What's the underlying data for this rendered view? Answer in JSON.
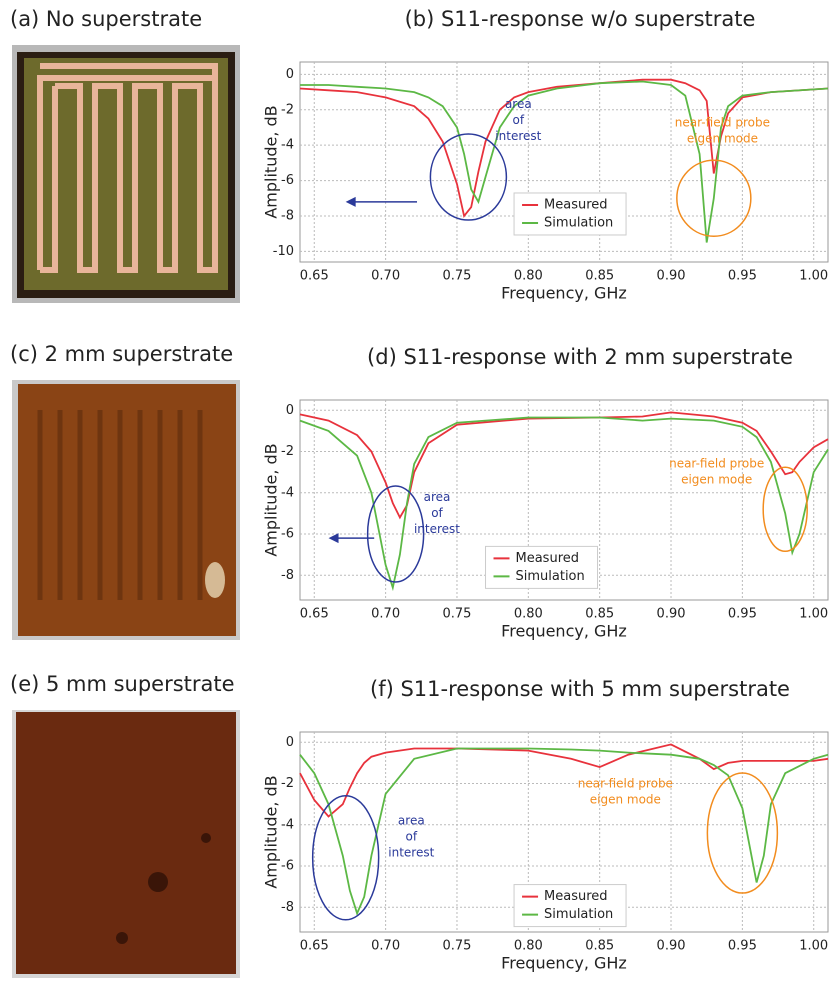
{
  "photos": [
    {
      "caption": "(a) No superstrate"
    },
    {
      "caption": "(c) 2 mm superstrate"
    },
    {
      "caption": "(e) 5 mm superstrate"
    }
  ],
  "chart_data": [
    {
      "type": "line",
      "title": "(b) S11-response w/o superstrate",
      "x_label": "Frequency, GHz",
      "y_label": "Amplitude, dB",
      "x": [
        0.64,
        0.66,
        0.68,
        0.7,
        0.72,
        0.73,
        0.74,
        0.75,
        0.755,
        0.76,
        0.765,
        0.77,
        0.78,
        0.79,
        0.8,
        0.82,
        0.85,
        0.88,
        0.9,
        0.91,
        0.92,
        0.925,
        0.93,
        0.935,
        0.94,
        0.95,
        0.97,
        1.01
      ],
      "series": [
        {
          "name": "Measured",
          "color": "#e8323c",
          "values": [
            -0.8,
            -0.9,
            -1.0,
            -1.3,
            -1.8,
            -2.5,
            -3.8,
            -6.2,
            -8.0,
            -7.5,
            -5.5,
            -3.8,
            -2.0,
            -1.3,
            -1.0,
            -0.7,
            -0.5,
            -0.3,
            -0.3,
            -0.5,
            -0.9,
            -1.5,
            -5.6,
            -3.5,
            -2.2,
            -1.3,
            -1.0,
            -0.8
          ]
        },
        {
          "name": "Simulation",
          "color": "#5cb845",
          "values": [
            -0.6,
            -0.6,
            -0.7,
            -0.8,
            -1.0,
            -1.3,
            -1.8,
            -3.0,
            -4.5,
            -6.5,
            -7.2,
            -5.8,
            -3.0,
            -1.8,
            -1.2,
            -0.8,
            -0.5,
            -0.4,
            -0.6,
            -1.2,
            -4.5,
            -9.5,
            -7.0,
            -3.0,
            -1.8,
            -1.2,
            -1.0,
            -0.8
          ]
        }
      ],
      "xlim": [
        0.64,
        1.01
      ],
      "ylim": [
        -10.6,
        0.7
      ],
      "xticks": [
        0.65,
        {
          "value": 0.7,
          "label": "0.70"
        },
        0.75,
        {
          "value": 0.8,
          "label": "0.80"
        },
        0.85,
        {
          "value": 0.9,
          "label": "0.90"
        },
        0.95,
        {
          "value": 1.0,
          "label": "1.00"
        }
      ],
      "yticks": [
        0,
        -2,
        -4,
        -6,
        -8,
        -10
      ],
      "grid": true,
      "annotations": [
        {
          "lines": [
            "area",
            "of",
            "interest"
          ],
          "color": "#2b3a9a"
        },
        {
          "lines": [
            "near-field probe",
            "eigen mode"
          ],
          "color": "#f28c1e"
        }
      ]
    },
    {
      "type": "line",
      "title": "(d) S11-response with 2 mm superstrate",
      "x_label": "Frequency, GHz",
      "y_label": "Amplitude, dB",
      "x": [
        0.64,
        0.66,
        0.68,
        0.69,
        0.7,
        0.705,
        0.71,
        0.715,
        0.72,
        0.73,
        0.75,
        0.8,
        0.85,
        0.88,
        0.9,
        0.93,
        0.95,
        0.96,
        0.97,
        0.98,
        0.985,
        0.99,
        1.0,
        1.01
      ],
      "series": [
        {
          "name": "Measured",
          "color": "#e8323c",
          "values": [
            -0.2,
            -0.5,
            -1.2,
            -2.0,
            -3.5,
            -4.5,
            -5.2,
            -4.6,
            -3.0,
            -1.6,
            -0.7,
            -0.4,
            -0.35,
            -0.3,
            -0.1,
            -0.3,
            -0.6,
            -1.0,
            -2.0,
            -3.1,
            -3.0,
            -2.5,
            -1.8,
            -1.4
          ]
        },
        {
          "name": "Simulation",
          "color": "#5cb845",
          "values": [
            -0.5,
            -1.0,
            -2.2,
            -4.0,
            -7.5,
            -8.6,
            -7.0,
            -4.5,
            -2.6,
            -1.3,
            -0.6,
            -0.35,
            -0.35,
            -0.5,
            -0.4,
            -0.5,
            -0.8,
            -1.3,
            -2.5,
            -5.0,
            -6.9,
            -6.0,
            -3.0,
            -1.9
          ]
        }
      ],
      "xlim": [
        0.64,
        1.01
      ],
      "ylim": [
        -9.2,
        0.5
      ],
      "xticks": [
        0.65,
        {
          "value": 0.7,
          "label": "0.70"
        },
        0.75,
        {
          "value": 0.8,
          "label": "0.80"
        },
        0.85,
        {
          "value": 0.9,
          "label": "0.90"
        },
        0.95,
        {
          "value": 1.0,
          "label": "1.00"
        }
      ],
      "yticks": [
        0,
        -2,
        -4,
        -6,
        -8
      ],
      "grid": true,
      "annotations": [
        {
          "lines": [
            "area",
            "of",
            "interest"
          ],
          "color": "#2b3a9a"
        },
        {
          "lines": [
            "near-field probe",
            "eigen mode"
          ],
          "color": "#f28c1e"
        }
      ]
    },
    {
      "type": "line",
      "title": "(f) S11-response with 5 mm superstrate",
      "x_label": "Frequency, GHz",
      "y_label": "Amplitude, dB",
      "x": [
        0.64,
        0.65,
        0.66,
        0.67,
        0.675,
        0.68,
        0.685,
        0.69,
        0.7,
        0.72,
        0.75,
        0.8,
        0.83,
        0.85,
        0.87,
        0.9,
        0.92,
        0.93,
        0.94,
        0.95,
        0.955,
        0.96,
        0.965,
        0.97,
        0.98,
        1.0,
        1.01
      ],
      "series": [
        {
          "name": "Measured",
          "color": "#e8323c",
          "values": [
            -1.5,
            -2.8,
            -3.6,
            -3.0,
            -2.2,
            -1.5,
            -1.0,
            -0.7,
            -0.5,
            -0.3,
            -0.3,
            -0.4,
            -0.8,
            -1.2,
            -0.6,
            -0.1,
            -0.8,
            -1.3,
            -1.0,
            -0.9,
            -0.9,
            -0.9,
            -0.9,
            -0.9,
            -0.9,
            -0.9,
            -0.8
          ]
        },
        {
          "name": "Simulation",
          "color": "#5cb845",
          "values": [
            -0.6,
            -1.5,
            -3.0,
            -5.5,
            -7.2,
            -8.3,
            -7.5,
            -5.5,
            -2.5,
            -0.8,
            -0.3,
            -0.3,
            -0.35,
            -0.4,
            -0.5,
            -0.6,
            -0.8,
            -1.1,
            -1.6,
            -3.2,
            -5.0,
            -6.8,
            -5.5,
            -3.0,
            -1.5,
            -0.8,
            -0.6
          ]
        }
      ],
      "xlim": [
        0.64,
        1.01
      ],
      "ylim": [
        -9.2,
        0.5
      ],
      "xticks": [
        0.65,
        {
          "value": 0.7,
          "label": "0.70"
        },
        0.75,
        {
          "value": 0.8,
          "label": "0.80"
        },
        0.85,
        {
          "value": 0.9,
          "label": "0.90"
        },
        0.95,
        {
          "value": 1.0,
          "label": "1.00"
        }
      ],
      "yticks": [
        0,
        -2,
        -4,
        -6,
        -8
      ],
      "grid": true,
      "annotations": [
        {
          "lines": [
            "area",
            "of",
            "interest"
          ],
          "color": "#2b3a9a"
        },
        {
          "lines": [
            "near-field probe",
            "eigen mode"
          ],
          "color": "#f28c1e"
        }
      ]
    }
  ]
}
